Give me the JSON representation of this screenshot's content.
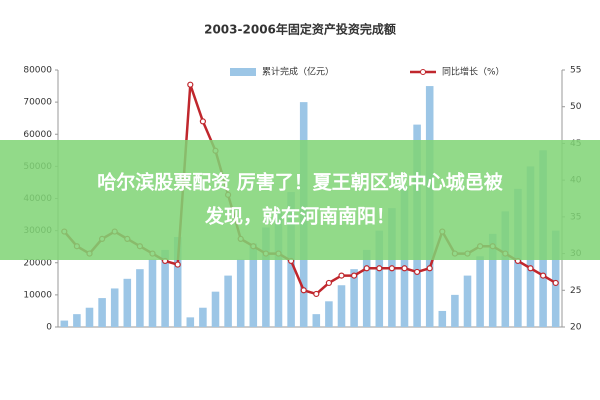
{
  "chart_data": {
    "type": "bar-line",
    "title": "2003-2006年固定资产投资完成额",
    "categories": [
      null,
      null,
      null,
      null,
      null,
      null,
      null,
      null,
      null,
      null,
      null,
      null,
      null,
      null,
      null,
      null,
      null,
      null,
      null,
      null,
      null,
      null,
      null,
      null,
      null,
      null,
      null,
      null,
      null,
      null,
      null,
      null,
      null,
      null,
      null,
      null,
      null,
      null,
      null,
      null
    ],
    "series": [
      {
        "name": "累计完成（亿元）",
        "type": "bar",
        "color": "#9cc6e6",
        "values": [
          2000,
          4000,
          6000,
          9000,
          12000,
          15000,
          18000,
          21000,
          24000,
          28000,
          3000,
          6000,
          11000,
          16000,
          21000,
          26000,
          31000,
          36000,
          42000,
          70000,
          4000,
          8000,
          13000,
          18000,
          24000,
          30000,
          37000,
          44000,
          63000,
          75000,
          5000,
          10000,
          16000,
          22000,
          29000,
          36000,
          43000,
          50000,
          55000,
          30000
        ]
      },
      {
        "name": "同比增长（%）",
        "type": "line",
        "axis": "y2",
        "color": "#c0272d",
        "values": [
          33,
          31,
          30,
          32,
          33,
          32,
          31,
          30,
          29,
          28.5,
          53,
          48,
          44,
          38,
          32,
          31,
          30,
          30,
          29,
          25,
          24.5,
          26,
          27,
          27,
          28,
          28,
          28,
          28,
          27.5,
          28,
          33,
          30,
          30,
          31,
          31,
          30,
          29,
          28,
          27,
          26
        ]
      }
    ],
    "ylim": [
      0,
      80000
    ],
    "yticks": [
      0,
      10000,
      20000,
      30000,
      40000,
      50000,
      60000,
      70000,
      80000
    ],
    "y2lim": [
      20,
      55
    ],
    "y2ticks": [
      20,
      25,
      30,
      35,
      40,
      45,
      50,
      55
    ],
    "overlay": {
      "lines": [
        "哈尔滨股票配资 厉害了！夏王朝区域中心城邑被",
        "发现，就在河南南阳！"
      ]
    }
  }
}
